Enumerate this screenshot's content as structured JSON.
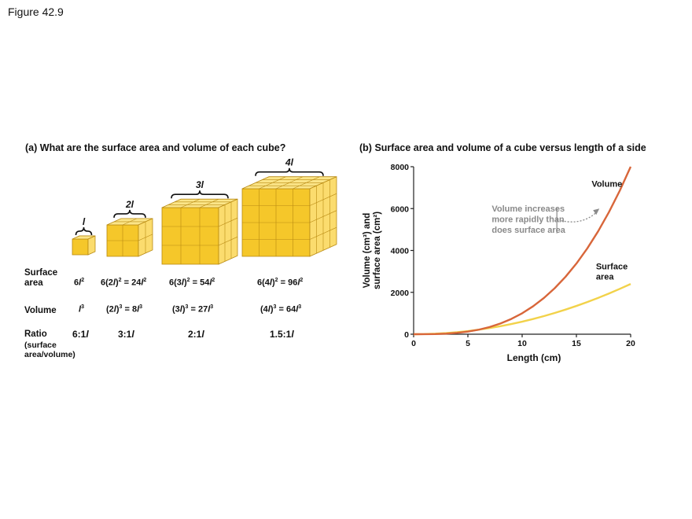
{
  "figure_label": "Figure 42.9",
  "panel_a": {
    "tag": "(a)",
    "title": "What are the surface area and volume of each cube?",
    "side_labels": [
      "l",
      "2l",
      "3l",
      "4l"
    ],
    "row_labels": {
      "surface_area": [
        "Surface",
        "area"
      ],
      "volume": "Volume",
      "ratio": "Ratio",
      "ratio_sub": [
        "(surface",
        "area/volume)"
      ]
    },
    "surface_area": [
      {
        "coef": "6",
        "base": "l",
        "result_num": "",
        "result_var": "",
        "exp": "2"
      },
      {
        "coef": "6(2",
        "base": "l",
        "result_num": "24",
        "result_var": "l",
        "exp": "2"
      },
      {
        "coef": "6(3",
        "base": "l",
        "result_num": "54",
        "result_var": "l",
        "exp": "2"
      },
      {
        "coef": "6(4",
        "base": "l",
        "result_num": "96",
        "result_var": "l",
        "exp": "2"
      }
    ],
    "volume": [
      {
        "coef": "",
        "base": "l",
        "result_num": "",
        "result_var": "",
        "exp": "3"
      },
      {
        "coef": "(2",
        "base": "l",
        "result_num": "8",
        "result_var": "l",
        "exp": "3"
      },
      {
        "coef": "(3",
        "base": "l",
        "result_num": "27",
        "result_var": "l",
        "exp": "3"
      },
      {
        "coef": "(4",
        "base": "l",
        "result_num": "64",
        "result_var": "l",
        "exp": "3"
      }
    ],
    "ratio": [
      {
        "num": "6:1",
        "var": "l"
      },
      {
        "num": "3:1",
        "var": "l"
      },
      {
        "num": "2:1",
        "var": "l"
      },
      {
        "num": "1.5:1",
        "var": "l"
      }
    ],
    "colors": {
      "cube_front": "#f5c72a",
      "cube_top": "#fbe588",
      "cube_side": "#fbdc6e",
      "cube_line": "#b98a12"
    }
  },
  "chart_data": {
    "type": "line",
    "tag": "(b)",
    "title": "Surface area and volume of a cube versus length of a side",
    "xlabel": "Length (cm)",
    "ylabel_lines": [
      "Volume (cm³) and",
      "surface area (cm²)"
    ],
    "xlim": [
      0,
      20
    ],
    "ylim": [
      0,
      8000
    ],
    "x_ticks": [
      0,
      5,
      10,
      15,
      20
    ],
    "y_ticks": [
      0,
      2000,
      4000,
      6000,
      8000
    ],
    "grid": false,
    "x": [
      0,
      1,
      2,
      3,
      4,
      5,
      6,
      7,
      8,
      9,
      10,
      11,
      12,
      13,
      14,
      15,
      16,
      17,
      18,
      19,
      20
    ],
    "series": [
      {
        "name": "Volume",
        "color": "#d8663a",
        "values": [
          0,
          1,
          8,
          27,
          64,
          125,
          216,
          343,
          512,
          729,
          1000,
          1331,
          1728,
          2197,
          2744,
          3375,
          4096,
          4913,
          5832,
          6859,
          8000
        ]
      },
      {
        "name_lines": [
          "Surface",
          "area"
        ],
        "color": "#f2d24a",
        "values": [
          0,
          6,
          24,
          54,
          96,
          150,
          216,
          294,
          384,
          486,
          600,
          726,
          864,
          1014,
          1176,
          1350,
          1536,
          1734,
          1944,
          2166,
          2400
        ]
      }
    ],
    "annotation": [
      "Volume increases",
      "more rapidly than",
      "does surface area"
    ],
    "annotation_color": "#8a8a8a"
  }
}
